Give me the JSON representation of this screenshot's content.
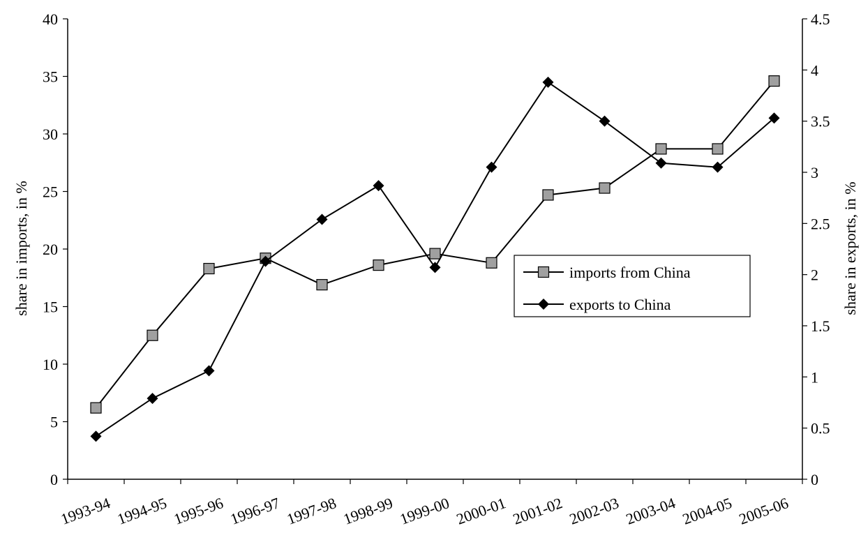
{
  "chart_data": {
    "type": "line",
    "title": "",
    "xlabel": "",
    "ylabel": "share in imports, in %",
    "ylabel_right": "share in exports, in %",
    "ylim": [
      0,
      40
    ],
    "ylim_right": [
      0,
      4.5
    ],
    "yticks": [
      "0",
      "5",
      "10",
      "15",
      "20",
      "25",
      "30",
      "35",
      "40"
    ],
    "yticks_right": [
      "0",
      "0.5",
      "1",
      "1.5",
      "2",
      "2.5",
      "3",
      "3.5",
      "4",
      "4.5"
    ],
    "grid": false,
    "legend_position": "center-right",
    "categories": [
      "1993-94",
      "1994-95",
      "1995-96",
      "1996-97",
      "1997-98",
      "1998-99",
      "1999-00",
      "2000-01",
      "2001-02",
      "2002-03",
      "2003-04",
      "2004-05",
      "2005-06"
    ],
    "series": [
      {
        "name": "imports from China",
        "axis": "left",
        "marker": "square",
        "marker_color": "#a0a0a0",
        "values": [
          6.2,
          12.5,
          18.3,
          19.2,
          16.9,
          18.6,
          19.6,
          18.8,
          24.7,
          25.3,
          28.7,
          28.7,
          34.6
        ]
      },
      {
        "name": "exports to China",
        "axis": "right",
        "marker": "diamond",
        "marker_color": "#000000",
        "values": [
          0.42,
          0.79,
          1.06,
          2.13,
          2.54,
          2.87,
          2.07,
          3.05,
          3.88,
          3.5,
          3.09,
          3.05,
          3.53
        ]
      }
    ]
  }
}
